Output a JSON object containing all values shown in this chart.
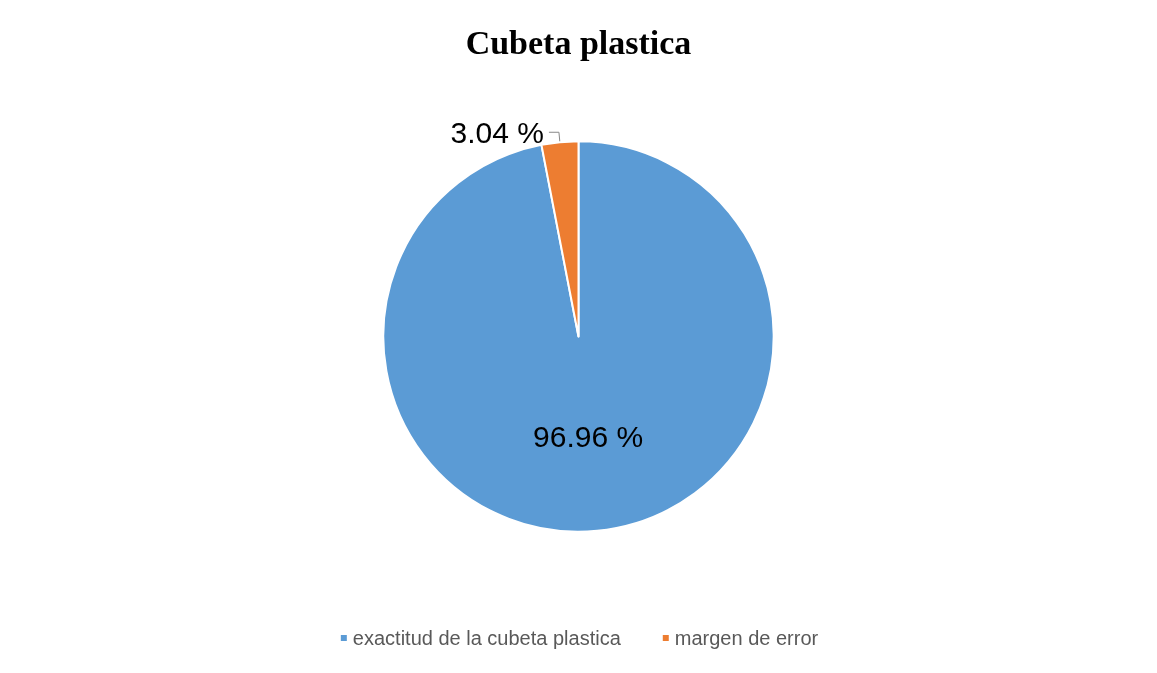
{
  "chart_data": {
    "type": "pie",
    "title": "Cubeta plastica",
    "categories": [
      "exactitud de la cubeta plastica",
      "margen de error"
    ],
    "values": [
      96.96,
      3.04
    ],
    "colors": [
      "#5b9bd5",
      "#ed7d31"
    ],
    "value_labels": [
      "96.96 %",
      "3.04 %"
    ],
    "legend": "bottom"
  }
}
